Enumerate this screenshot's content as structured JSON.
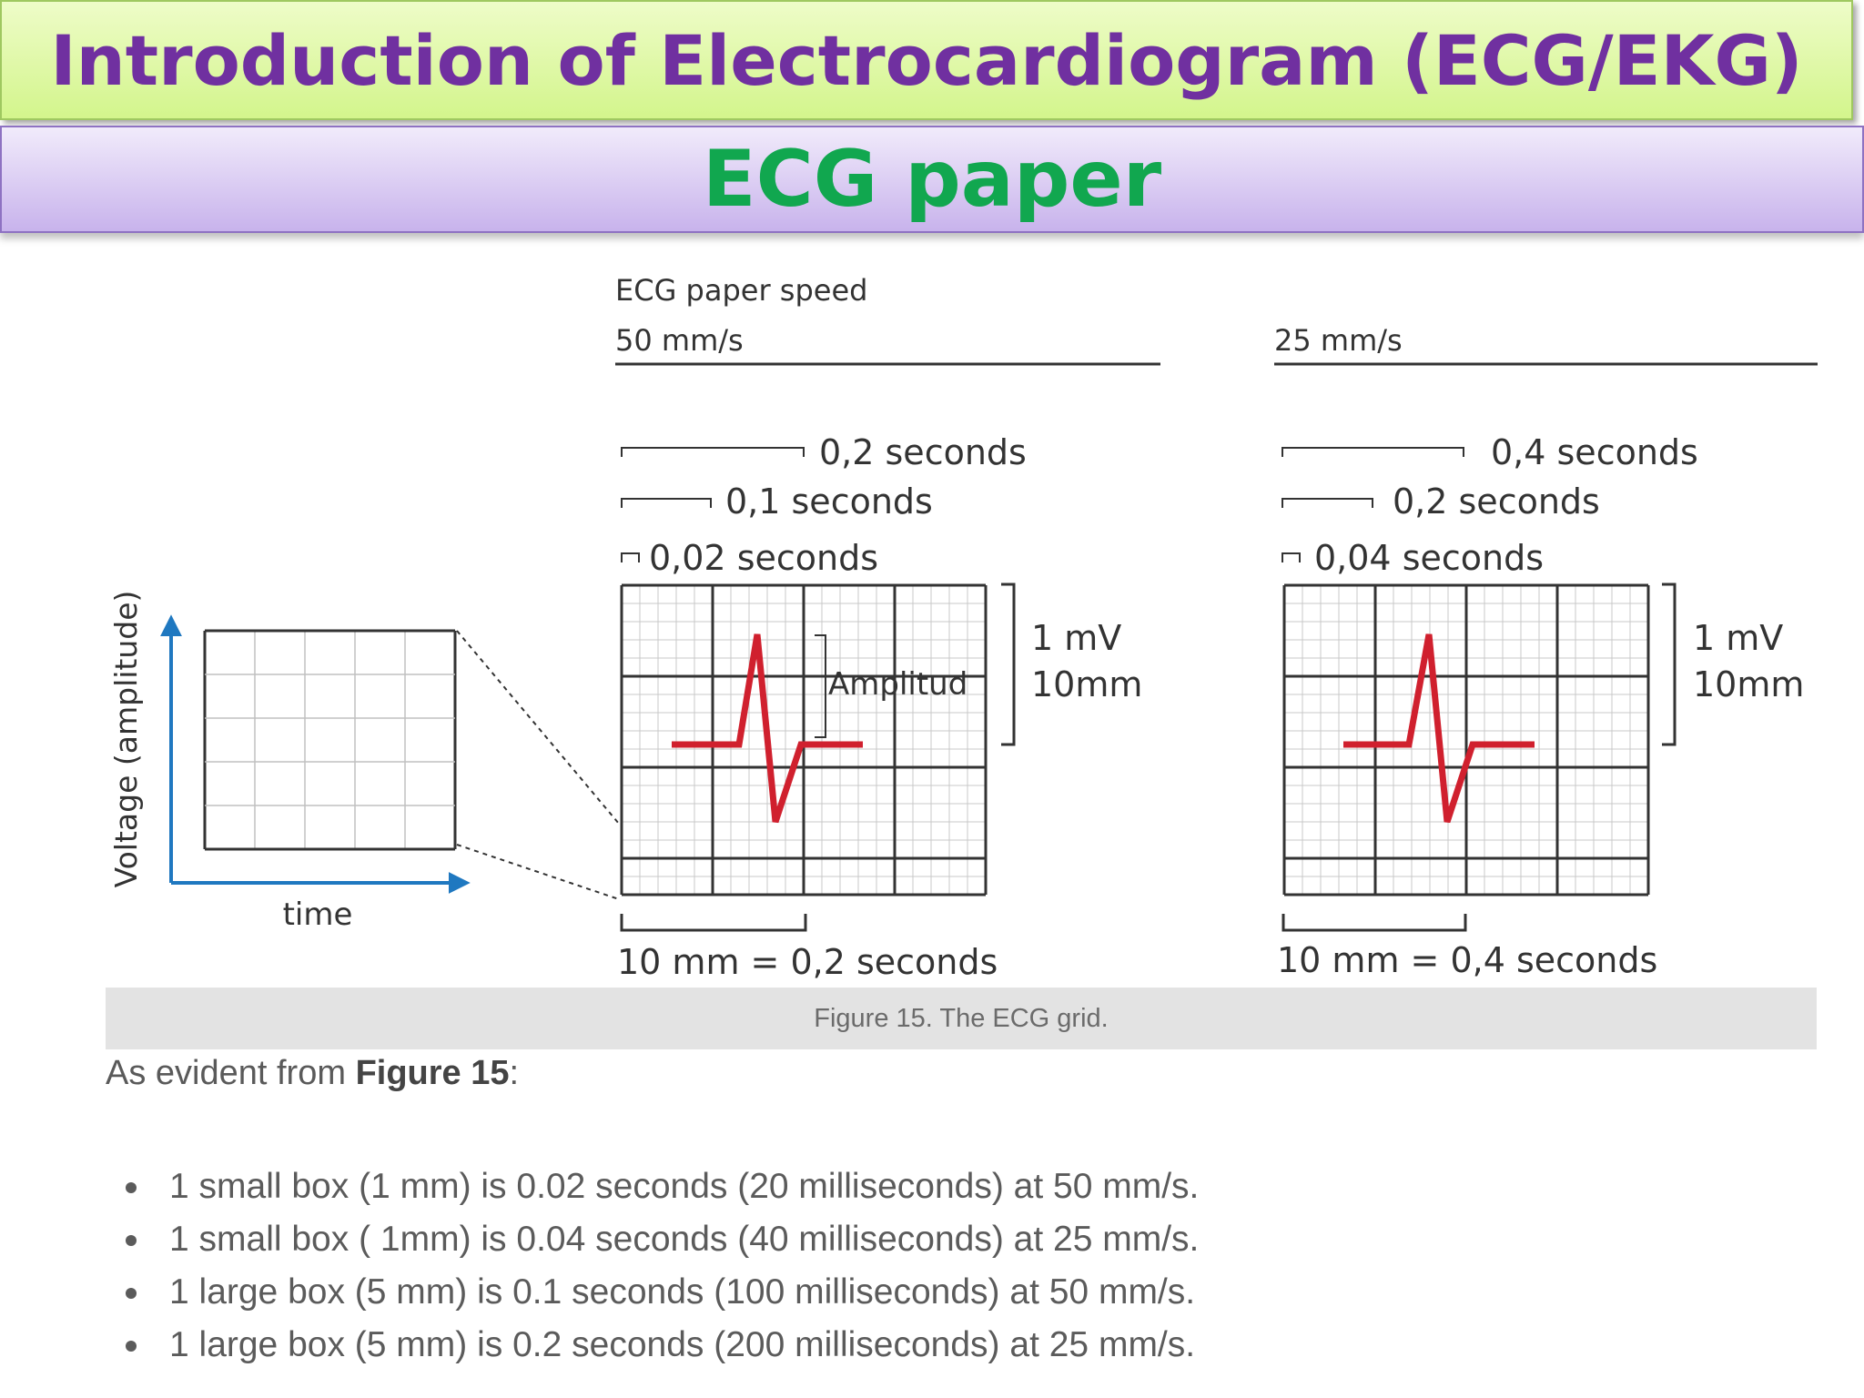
{
  "title": "Introduction of  Electrocardiogram (ECG/EKG)",
  "subtitle": "ECG paper",
  "figure": {
    "speed_heading": "ECG paper speed",
    "axis_y_label": "Voltage (amplitude)",
    "axis_x_label": "time",
    "left_panel": {
      "speed": "50 mm/s",
      "scale_large": "0,2 seconds",
      "scale_medium": "0,1 seconds",
      "scale_small": "0,02 seconds",
      "amplitude_label": "Amplitud",
      "voltage": "1 mV",
      "height": "10mm",
      "bottom_scale": "10 mm = 0,2 seconds"
    },
    "right_panel": {
      "speed": "25 mm/s",
      "scale_large": "0,4 seconds",
      "scale_medium": "0,2 seconds",
      "scale_small": "0,04 seconds",
      "voltage": "1 mV",
      "height": "10mm",
      "bottom_scale": "10 mm = 0,4 seconds"
    },
    "caption": "Figure 15. The ECG grid.",
    "colors": {
      "trace": "#d0202e",
      "axis": "#1f78c0"
    }
  },
  "body": {
    "intro_prefix": "As evident from ",
    "intro_bold": "Figure 15",
    "intro_suffix": ":",
    "bullets": [
      "1 small box (1 mm) is 0.02 seconds (20 milliseconds) at 50 mm/s.",
      "1 small box ( 1mm) is 0.04 seconds (40 milliseconds) at 25 mm/s.",
      "1 large box (5 mm) is 0.1 seconds (100 milliseconds) at 50 mm/s.",
      "1 large box (5 mm) is 0.2 seconds (200 milliseconds) at 25 mm/s."
    ]
  }
}
